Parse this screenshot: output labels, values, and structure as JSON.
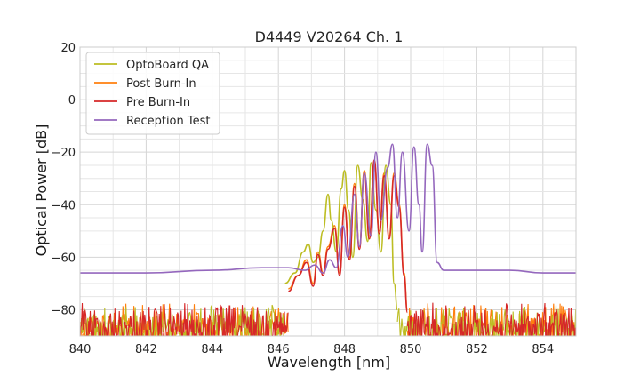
{
  "chart_data": {
    "type": "line",
    "title": "D4449 V20264 Ch. 1",
    "xlabel": "Wavelength [nm]",
    "ylabel": "Optical Power [dB]",
    "xlim": [
      840,
      855
    ],
    "ylim": [
      -90,
      20
    ],
    "xticks": [
      840,
      842,
      844,
      846,
      848,
      850,
      852,
      854
    ],
    "yticks": [
      20,
      0,
      -20,
      -40,
      -60,
      -80
    ],
    "xtick_labels": [
      "840",
      "842",
      "844",
      "846",
      "848",
      "850",
      "852",
      "854"
    ],
    "ytick_labels": [
      "20",
      "0",
      "−20",
      "−40",
      "−60",
      "−80"
    ],
    "grid": true,
    "legend_position": "top-left",
    "series": [
      {
        "name": "OptoBoard QA",
        "color": "#bcbd22",
        "noise_floor": {
          "x_range": [
            840,
            846.2
          ],
          "y_range": [
            -90,
            -78
          ],
          "x_range2": [
            849.6,
            855
          ]
        },
        "x": [
          846.2,
          846.5,
          846.75,
          846.9,
          847.05,
          847.2,
          847.35,
          847.5,
          847.6,
          847.75,
          847.9,
          848.0,
          848.12,
          848.25,
          848.4,
          848.55,
          848.7,
          848.8,
          848.95,
          849.1,
          849.25,
          849.4,
          849.5,
          849.6
        ],
        "y": [
          -70,
          -66,
          -58,
          -55,
          -62,
          -60,
          -50,
          -36,
          -46,
          -58,
          -34,
          -27,
          -42,
          -60,
          -25,
          -38,
          -54,
          -24,
          -42,
          -58,
          -25,
          -40,
          -70,
          -80
        ]
      },
      {
        "name": "Post Burn-In",
        "color": "#ff7f0e",
        "noise_floor": {
          "x_range": [
            840,
            846.3
          ],
          "y_range": [
            -90,
            -77
          ],
          "x_range2": [
            849.9,
            855
          ]
        },
        "x": [
          846.3,
          846.6,
          846.85,
          847.05,
          847.2,
          847.35,
          847.5,
          847.7,
          847.85,
          848.0,
          848.15,
          848.3,
          848.45,
          848.6,
          848.75,
          848.9,
          849.05,
          849.2,
          849.35,
          849.5,
          849.65,
          849.8,
          849.9
        ],
        "y": [
          -72,
          -67,
          -61,
          -70,
          -58,
          -66,
          -56,
          -48,
          -66,
          -40,
          -60,
          -32,
          -56,
          -27,
          -52,
          -24,
          -50,
          -28,
          -52,
          -28,
          -40,
          -66,
          -80
        ]
      },
      {
        "name": "Pre Burn-In",
        "color": "#d62728",
        "noise_floor": {
          "x_range": [
            840,
            846.3
          ],
          "y_range": [
            -90,
            -77
          ],
          "x_range2": [
            849.9,
            855
          ]
        },
        "x": [
          846.3,
          846.6,
          846.85,
          847.05,
          847.2,
          847.35,
          847.5,
          847.7,
          847.85,
          848.0,
          848.15,
          848.3,
          848.45,
          848.6,
          848.75,
          848.9,
          849.05,
          849.2,
          849.35,
          849.5,
          849.65,
          849.8,
          849.9
        ],
        "y": [
          -73,
          -67,
          -62,
          -71,
          -59,
          -67,
          -57,
          -49,
          -67,
          -41,
          -61,
          -33,
          -57,
          -28,
          -53,
          -23,
          -51,
          -29,
          -53,
          -29,
          -41,
          -67,
          -81
        ]
      },
      {
        "name": "Reception Test",
        "color": "#9467bd",
        "x": [
          840,
          842,
          844,
          845.5,
          846.3,
          846.8,
          847.1,
          847.35,
          847.55,
          847.75,
          847.95,
          848.1,
          848.3,
          848.45,
          848.6,
          848.8,
          848.95,
          849.1,
          849.3,
          849.45,
          849.6,
          849.75,
          849.95,
          850.1,
          850.25,
          850.35,
          850.5,
          850.65,
          850.8,
          851.0,
          852.0,
          853.0,
          854.0,
          855.0
        ],
        "y": [
          -66,
          -66,
          -65,
          -64,
          -64,
          -65,
          -63,
          -66,
          -61,
          -64,
          -48,
          -60,
          -36,
          -56,
          -28,
          -52,
          -20,
          -46,
          -26,
          -17,
          -45,
          -20,
          -50,
          -18,
          -40,
          -58,
          -17,
          -25,
          -62,
          -65,
          -65,
          -65,
          -66,
          -66
        ]
      }
    ]
  }
}
